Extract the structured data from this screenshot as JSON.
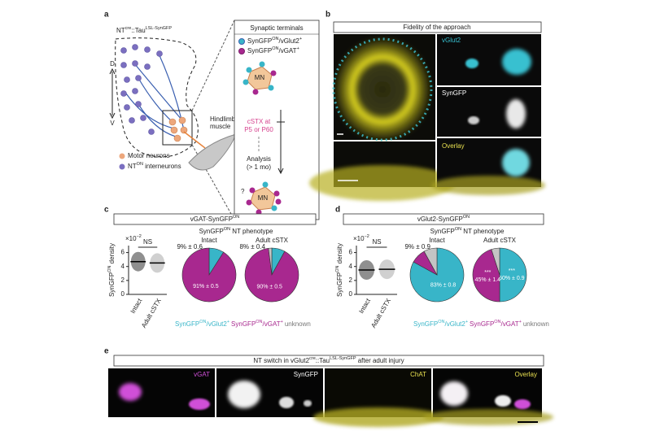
{
  "panel_a": {
    "letter": "a",
    "genotype": [
      "NT",
      "cre",
      "::Tau",
      "LSL-SynGFP"
    ],
    "dorsal": "D",
    "ventral": "V",
    "muscle": [
      "Hindlimb",
      "muscle"
    ],
    "legend": [
      [
        "Motor neurons"
      ],
      [
        "NT",
        "ON",
        " interneurons"
      ]
    ],
    "box": {
      "title": "Synaptic terminals",
      "items": [
        [
          "SynGFP",
          "ON",
          "/vGlut2",
          "+"
        ],
        [
          "SynGFP",
          "ON",
          "/vGAT",
          "+"
        ]
      ],
      "mn": "MN",
      "treatment": [
        "cSTX at",
        "P5 or P60"
      ],
      "analysis": [
        "Analysis",
        "(> 1 mo)"
      ],
      "question": "?",
      "mn_after": "MN"
    }
  },
  "panel_b": {
    "letter": "b",
    "title": "Fidelity of the approach",
    "labels": [
      "vGlut2",
      "SynGFP",
      "Overlay"
    ]
  },
  "panel_c": {
    "letter": "c",
    "title": [
      "vGAT-SynGFP",
      "ON"
    ],
    "subtitle": [
      "SynGFP",
      "ON",
      " NT phenotype"
    ],
    "scatter": {
      "exponent": [
        "×10",
        "−2"
      ],
      "ylabel": [
        "SynGFP",
        "ON",
        " density"
      ],
      "ylim": [
        0,
        7
      ],
      "yticks": [
        0,
        2,
        4,
        6
      ],
      "categories": [
        "Intact",
        "Adult cSTX"
      ],
      "means": [
        4.7,
        4.5
      ],
      "significance": "NS"
    },
    "pies": [
      {
        "title": "Intact",
        "values": [
          9,
          91,
          0
        ],
        "value_labels": [
          "9% ± 0.6",
          "91% ± 0.5",
          null
        ]
      },
      {
        "title": "Adult cSTX",
        "values": [
          8,
          90,
          2
        ],
        "value_labels": [
          "8% ± 0.4",
          "90% ± 0.5",
          null
        ]
      }
    ],
    "legend": [
      [
        "SynGFP",
        "ON",
        "/vGlut2",
        "+"
      ],
      [
        "SynGFP",
        "ON",
        "/vGAT",
        "+"
      ],
      [
        "unknown"
      ]
    ],
    "colors": [
      "#38b5c8",
      "#a8288f",
      "#c4c4c4"
    ]
  },
  "panel_d": {
    "letter": "d",
    "title": [
      "vGlut2-SynGFP",
      "ON"
    ],
    "subtitle": [
      "SynGFP",
      "ON",
      " NT phenotype"
    ],
    "scatter": {
      "exponent": [
        "×10",
        "−2"
      ],
      "ylabel": [
        "SynGFP",
        "ON",
        " density"
      ],
      "ylim": [
        0,
        7
      ],
      "yticks": [
        0,
        2,
        4,
        6
      ],
      "categories": [
        "Intact",
        "Adult cSTX"
      ],
      "means": [
        3.5,
        3.6
      ],
      "significance": "NS"
    },
    "pies": [
      {
        "title": "Intact",
        "values": [
          83,
          9,
          8
        ],
        "value_labels": [
          "83% ± 0.8",
          "9% ± 0.9",
          null
        ]
      },
      {
        "title": "Adult cSTX",
        "values": [
          50,
          45,
          5
        ],
        "value_labels": [
          "50% ± 0.9",
          "45% ± 1.4",
          null
        ],
        "stars": [
          "***",
          "***",
          null
        ]
      }
    ],
    "legend": [
      [
        "SynGFP",
        "ON",
        "/vGlut2",
        "+"
      ],
      [
        "SynGFP",
        "ON",
        "/vGAT",
        "+"
      ],
      [
        "unknown"
      ]
    ],
    "colors": [
      "#38b5c8",
      "#a8288f",
      "#c4c4c4"
    ]
  },
  "panel_e": {
    "letter": "e",
    "title": [
      "NT switch in vGlut2",
      "cre",
      "::Tau",
      "LSL-SynGFP",
      " after adult injury"
    ],
    "labels": [
      "vGAT",
      "SynGFP",
      "ChAT",
      "Overlay"
    ]
  }
}
